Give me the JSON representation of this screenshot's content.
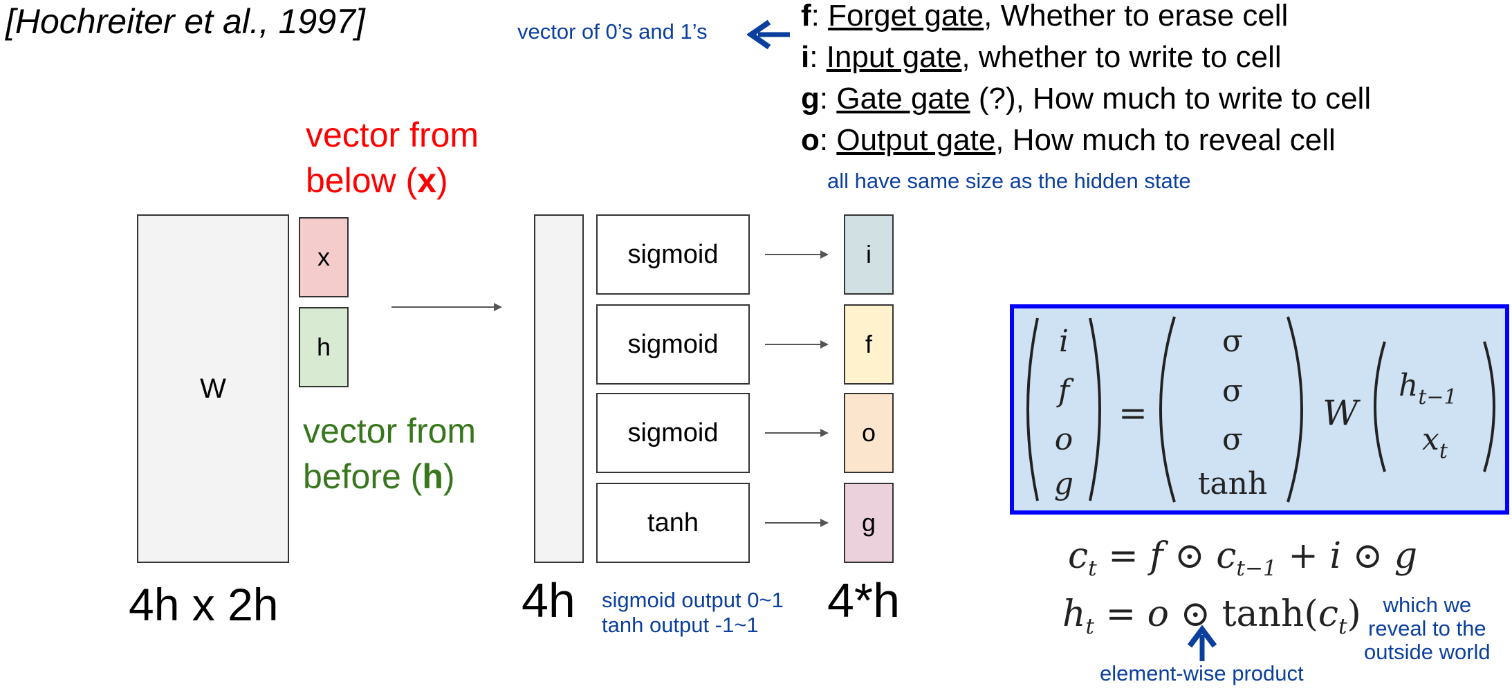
{
  "citation": "[Hochreiter et al., 1997]",
  "gate_note": "vector of 0’s and 1’s",
  "gates": [
    {
      "letter": "f",
      "name": "Forget gate",
      "desc": ", Whether to erase cell"
    },
    {
      "letter": "i",
      "name": "Input gate",
      "desc": ", whether to write to cell"
    },
    {
      "letter": "g",
      "name": "Gate gate",
      "desc": " (?), How much to write to cell"
    },
    {
      "letter": "o",
      "name": "Output gate",
      "desc": ", How much to reveal cell"
    }
  ],
  "same_size_note": "all have same size as the hidden state",
  "x_label": {
    "line1": "vector from",
    "line2_pre": "below (",
    "bold": "x",
    "line2_post": ")"
  },
  "h_label": {
    "line1": "vector from",
    "line2_pre": "before (",
    "bold": "h",
    "line2_post": ")"
  },
  "matrix": {
    "label": "W",
    "dims": "4h x 2h"
  },
  "inputs": {
    "x": "x",
    "h": "h"
  },
  "activations": [
    "sigmoid",
    "sigmoid",
    "sigmoid",
    "tanh"
  ],
  "outputs": [
    "i",
    "f",
    "o",
    "g"
  ],
  "mid_dims": "4h",
  "out_dims": "4*h",
  "activation_note": {
    "line1": "sigmoid output 0~1",
    "line2": "tanh output -1~1"
  },
  "equation": {
    "lhs": [
      "i",
      "f",
      "o",
      "g"
    ],
    "rhs": [
      "σ",
      "σ",
      "σ",
      "tanh"
    ],
    "w": "W",
    "vec": [
      "h",
      "t−1",
      "x",
      "t"
    ]
  },
  "cell_eq": "c",
  "hidden_eq": "h",
  "reveal_note": [
    "which we",
    "reveal to the",
    "outside world"
  ],
  "product_note": "element-wise product",
  "colors": {
    "x_box": "#f4cccc",
    "h_box": "#d9ead3",
    "i_box": "#d0e0e3",
    "f_box": "#fff2cc",
    "o_box": "#fce5cd",
    "g_box": "#ead1dc",
    "eq_bg": "#cfe2f3",
    "eq_border": "#0000ff",
    "red": "#ff0000",
    "green": "#38761d",
    "blue": "#0b3f9e"
  }
}
